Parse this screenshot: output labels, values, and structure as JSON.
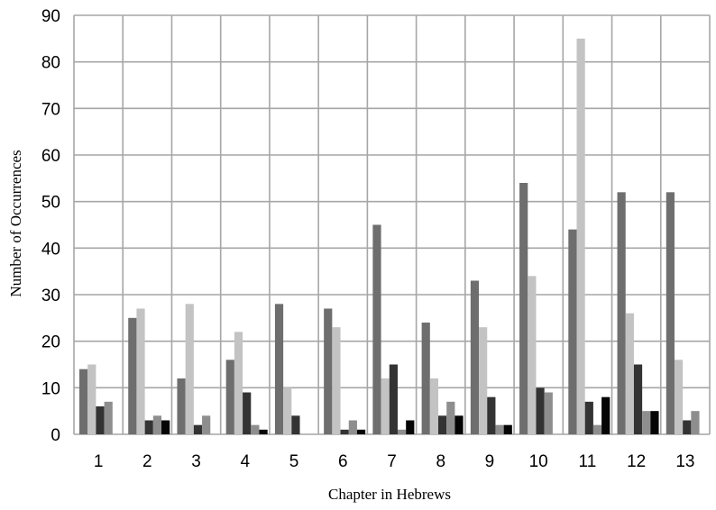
{
  "chart_data": {
    "type": "bar",
    "title": "",
    "xlabel": "Chapter in Hebrews",
    "ylabel": "Number of Occurrences",
    "ylim": [
      0,
      90
    ],
    "yticks": [
      0,
      10,
      20,
      30,
      40,
      50,
      60,
      70,
      80,
      90
    ],
    "grid": true,
    "legend": "none",
    "categories": [
      "1",
      "2",
      "3",
      "4",
      "5",
      "6",
      "7",
      "8",
      "9",
      "10",
      "11",
      "12",
      "13"
    ],
    "series": [
      {
        "color": "#6e6e6e",
        "values": [
          14,
          25,
          12,
          16,
          28,
          27,
          45,
          24,
          33,
          54,
          44,
          52,
          52
        ]
      },
      {
        "color": "#c3c3c3",
        "values": [
          15,
          27,
          28,
          22,
          10,
          23,
          12,
          12,
          23,
          34,
          85,
          26,
          16
        ]
      },
      {
        "color": "#333333",
        "values": [
          6,
          3,
          2,
          9,
          4,
          1,
          15,
          4,
          8,
          10,
          7,
          15,
          3
        ]
      },
      {
        "color": "#8e8e8e",
        "values": [
          7,
          4,
          4,
          2,
          0,
          3,
          1,
          7,
          2,
          9,
          2,
          5,
          5
        ]
      },
      {
        "color": "#050505",
        "values": [
          0,
          3,
          0,
          1,
          0,
          1,
          3,
          4,
          2,
          0,
          8,
          5,
          0
        ]
      }
    ]
  }
}
